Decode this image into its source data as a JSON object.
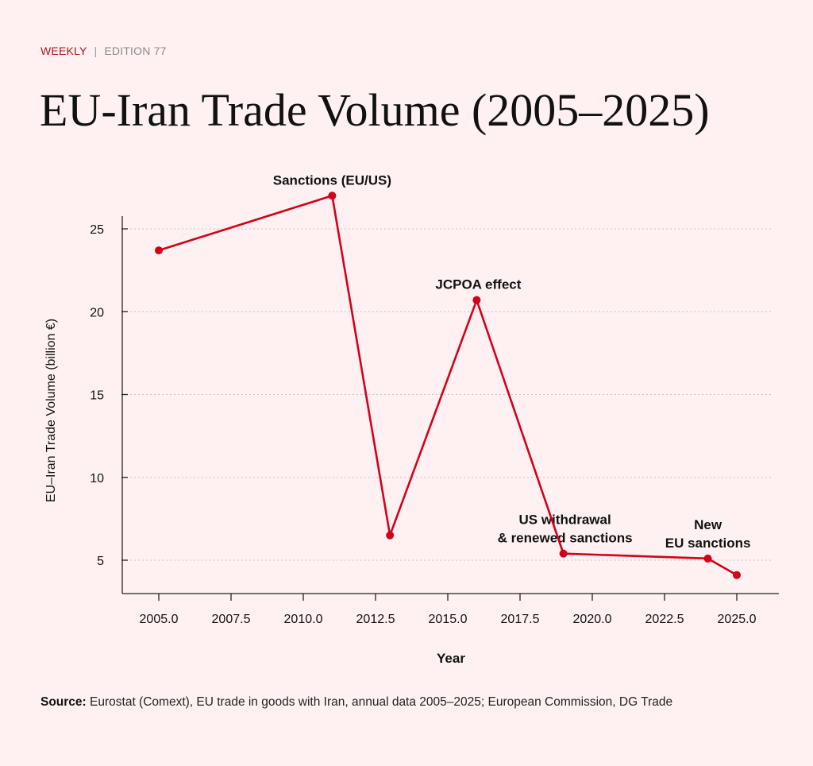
{
  "header": {
    "kicker_brand": "WEEKLY",
    "kicker_separator": "|",
    "kicker_edition": "EDITION 77",
    "title": "EU-Iran Trade Volume (2005–2025)"
  },
  "footer": {
    "source_label": "Source:",
    "source_text": " Eurostat (Comext), EU trade in goods with Iran, annual data 2005–2025; European Commission, DG Trade"
  },
  "colors": {
    "background": "#fff1f1",
    "line": "#d0021b",
    "accent": "#b3121c",
    "grid": "#c9c2c2",
    "axis": "#222222"
  },
  "chart_data": {
    "type": "line",
    "title": "EU-Iran Trade Volume (2005–2025)",
    "xlabel": "Year",
    "ylabel": "EU–Iran Trade Volume (billion €)",
    "xlim": [
      2004.3,
      2026.5
    ],
    "ylim": [
      3.0,
      25.7
    ],
    "x_ticks": [
      2005.0,
      2007.5,
      2010.0,
      2012.5,
      2015.0,
      2017.5,
      2020.0,
      2022.5,
      2025.0
    ],
    "x_tick_labels": [
      "2005.0",
      "2007.5",
      "2010.0",
      "2012.5",
      "2015.0",
      "2017.5",
      "2020.0",
      "2022.5",
      "2025.0"
    ],
    "y_ticks": [
      5,
      10,
      15,
      20,
      25
    ],
    "y_tick_labels": [
      "5",
      "10",
      "15",
      "20",
      "25"
    ],
    "grid": "y-dotted",
    "legend": "none",
    "series": [
      {
        "name": "EU-Iran trade volume",
        "x": [
          2005,
          2011,
          2013,
          2016,
          2019,
          2024,
          2025
        ],
        "values": [
          23.7,
          27.0,
          6.5,
          20.7,
          5.4,
          5.1,
          4.1
        ]
      }
    ],
    "annotations": [
      {
        "lines": [
          "Sanctions (EU/US)"
        ],
        "x": 2011,
        "y": 27.0
      },
      {
        "lines": [
          "JCPOA effect"
        ],
        "x": 2016,
        "y": 20.7
      },
      {
        "lines": [
          "US withdrawal",
          "& renewed sanctions"
        ],
        "x": 2019,
        "y": 5.4
      },
      {
        "lines": [
          "New",
          "EU sanctions"
        ],
        "x": 2024,
        "y": 5.1
      }
    ]
  }
}
